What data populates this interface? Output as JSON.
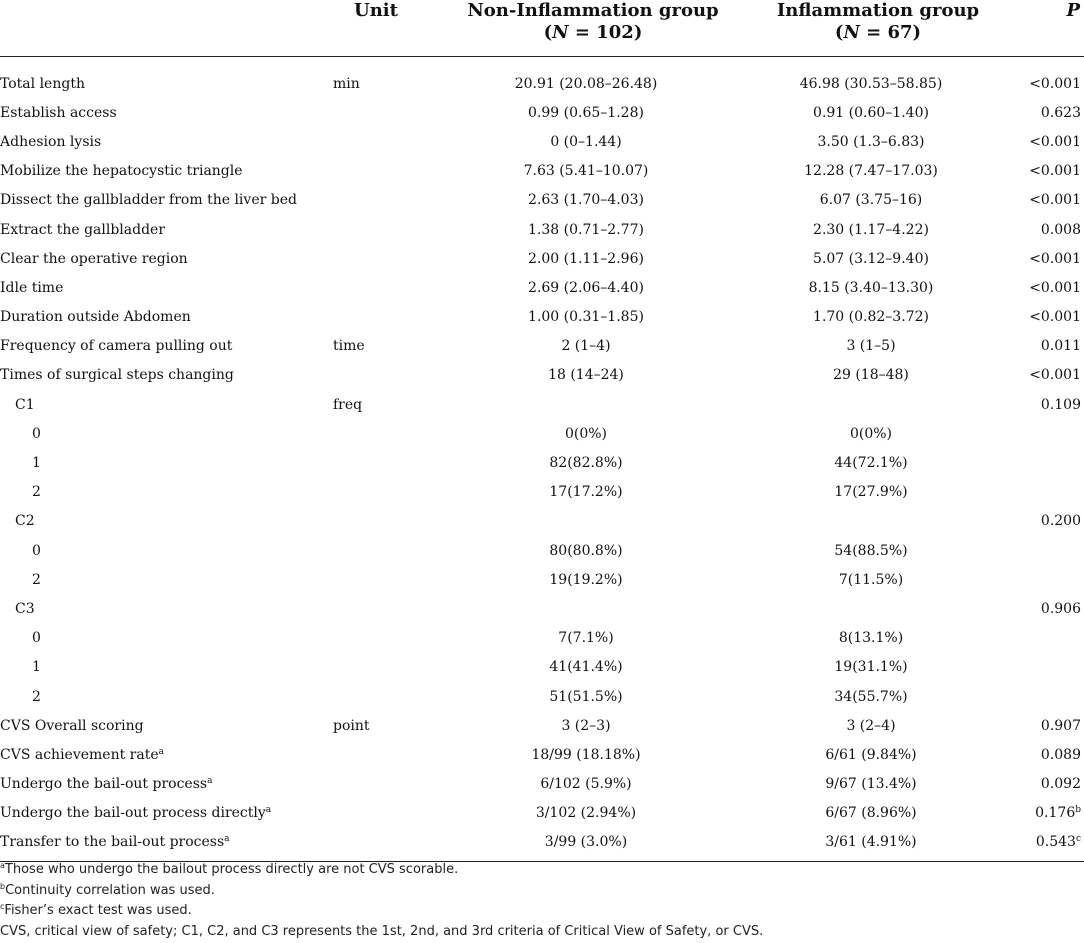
{
  "header": {
    "col0": "",
    "unit": "Unit",
    "non_group": "Non-Inflammation group",
    "non_n_prefix": "(",
    "non_n_var": "N",
    "non_n_rest": " = 102)",
    "inf_group": "Inflammation group",
    "inf_n_prefix": "(",
    "inf_n_var": "N",
    "inf_n_rest": " = 67)",
    "p": "P"
  },
  "rows": [
    {
      "label": "Total length",
      "unit": "min",
      "non": "20.91 (20.08–26.48)",
      "inf": "46.98 (30.53–58.85)",
      "p": "<0.001"
    },
    {
      "label": "Establish access",
      "unit": "",
      "non": "0.99 (0.65–1.28)",
      "inf": "0.91 (0.60–1.40)",
      "p": "0.623"
    },
    {
      "label": "Adhesion lysis",
      "unit": "",
      "non": "0 (0–1.44)",
      "inf": "3.50 (1.3–6.83)",
      "p": "<0.001"
    },
    {
      "label": "Mobilize the hepatocystic triangle",
      "unit": "",
      "non": "7.63 (5.41–10.07)",
      "inf": "12.28 (7.47–17.03)",
      "p": "<0.001"
    },
    {
      "label": "Dissect the gallbladder from the liver bed",
      "unit": "",
      "non": "2.63 (1.70–4.03)",
      "inf": "6.07 (3.75–16)",
      "p": "<0.001"
    },
    {
      "label": "Extract the gallbladder",
      "unit": "",
      "non": "1.38 (0.71–2.77)",
      "inf": "2.30 (1.17–4.22)",
      "p": "0.008"
    },
    {
      "label": "Clear the operative region",
      "unit": "",
      "non": "2.00 (1.11–2.96)",
      "inf": "5.07 (3.12–9.40)",
      "p": "<0.001"
    },
    {
      "label": "Idle time",
      "unit": "",
      "non": "2.69 (2.06–4.40)",
      "inf": "8.15 (3.40–13.30)",
      "p": "<0.001"
    },
    {
      "label": "Duration outside Abdomen",
      "unit": "",
      "non": "1.00 (0.31–1.85)",
      "inf": "1.70 (0.82–3.72)",
      "p": "<0.001"
    },
    {
      "label": "Frequency of camera pulling out",
      "unit": "time",
      "non": "2 (1–4)",
      "inf": "3 (1–5)",
      "p": "0.011"
    },
    {
      "label": "Times of surgical steps changing",
      "unit": "",
      "non": "18 (14–24)",
      "inf": "29 (18–48)",
      "p": "<0.001"
    },
    {
      "label": "C1",
      "unit": "freq",
      "non": "",
      "inf": "",
      "p": "0.109",
      "indent": 1
    },
    {
      "label": "0",
      "unit": "",
      "non": "0(0%)",
      "inf": "0(0%)",
      "p": "",
      "indent": 2
    },
    {
      "label": "1",
      "unit": "",
      "non": "82(82.8%)",
      "inf": "44(72.1%)",
      "p": "",
      "indent": 2
    },
    {
      "label": "2",
      "unit": "",
      "non": "17(17.2%)",
      "inf": "17(27.9%)",
      "p": "",
      "indent": 2
    },
    {
      "label": "C2",
      "unit": "",
      "non": "",
      "inf": "",
      "p": "0.200",
      "indent": 1
    },
    {
      "label": "0",
      "unit": "",
      "non": "80(80.8%)",
      "inf": "54(88.5%)",
      "p": "",
      "indent": 2
    },
    {
      "label": "2",
      "unit": "",
      "non": "19(19.2%)",
      "inf": "7(11.5%)",
      "p": "",
      "indent": 2
    },
    {
      "label": "C3",
      "unit": "",
      "non": "",
      "inf": "",
      "p": "0.906",
      "indent": 1
    },
    {
      "label": "0",
      "unit": "",
      "non": "7(7.1%)",
      "inf": "8(13.1%)",
      "p": "",
      "indent": 2
    },
    {
      "label": "1",
      "unit": "",
      "non": "41(41.4%)",
      "inf": "19(31.1%)",
      "p": "",
      "indent": 2
    },
    {
      "label": "2",
      "unit": "",
      "non": "51(51.5%)",
      "inf": "34(55.7%)",
      "p": "",
      "indent": 2
    },
    {
      "label": "CVS Overall scoring",
      "unit": "point",
      "non": "3 (2–3)",
      "inf": "3 (2–4)",
      "p": "0.907"
    },
    {
      "label": "CVS achievement rate",
      "label_sup": "a",
      "unit": "",
      "non": "18/99 (18.18%)",
      "inf": "6/61 (9.84%)",
      "p": "0.089"
    },
    {
      "label": "Undergo the bail-out process",
      "label_sup": "a",
      "unit": "",
      "non": "6/102 (5.9%)",
      "inf": "9/67 (13.4%)",
      "p": "0.092"
    },
    {
      "label": "Undergo the bail-out process directly",
      "label_sup": "a",
      "unit": "",
      "non": "3/102 (2.94%)",
      "inf": "6/67 (8.96%)",
      "p": "0.176",
      "p_sup": "b"
    },
    {
      "label": "Transfer to the bail-out process",
      "label_sup": "a",
      "unit": "",
      "non": "3/99 (3.0%)",
      "inf": "3/61 (4.91%)",
      "p": "0.543",
      "p_sup": "c"
    }
  ],
  "footnotes": [
    {
      "mark": "a",
      "text": "Those who undergo the bailout process directly are not CVS scorable."
    },
    {
      "mark": "b",
      "text": "Continuity correlation was used."
    },
    {
      "mark": "c",
      "text": "Fisher’s exact test was used."
    },
    {
      "mark": "",
      "text": "CVS, critical view of safety; C1, C2, and C3 represents the 1st, 2nd, and 3rd criteria of Critical View of Safety, or CVS."
    }
  ]
}
